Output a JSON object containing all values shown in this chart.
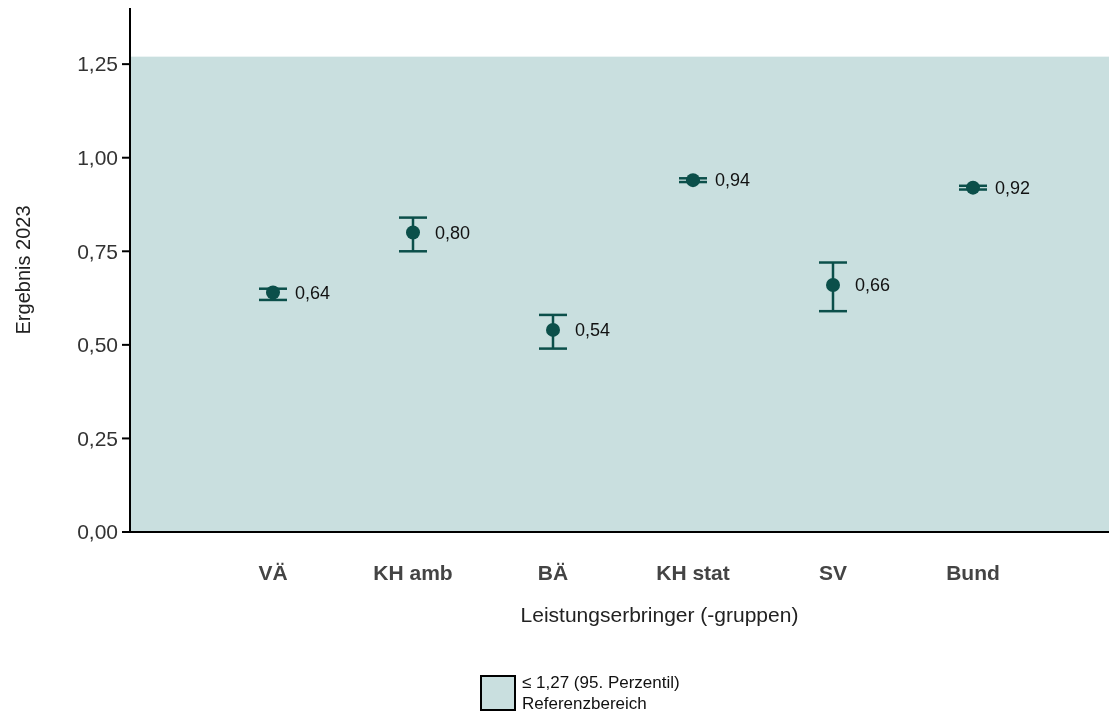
{
  "chart_data": {
    "type": "scatter",
    "xlabel": "Leistungserbringer (-gruppen)",
    "ylabel": "Ergebnis 2023",
    "categories": [
      "VÄ",
      "KH amb",
      "BÄ",
      "KH stat",
      "SV",
      "Bund"
    ],
    "series": [
      {
        "color": "#0b4f4a",
        "values": [
          0.64,
          0.8,
          0.54,
          0.94,
          0.66,
          0.92
        ],
        "errors": [
          [
            0.62,
            0.65
          ],
          [
            0.75,
            0.84
          ],
          [
            0.49,
            0.58
          ],
          [
            0.935,
            0.945
          ],
          [
            0.59,
            0.72
          ],
          [
            0.915,
            0.925
          ]
        ],
        "value_labels": [
          "0,64",
          "0,80",
          "0,54",
          "0,94",
          "0,66",
          "0,92"
        ]
      }
    ],
    "ylim": [
      0,
      1.4
    ],
    "yticks": [
      {
        "value": 0,
        "label": "0,00"
      },
      {
        "value": 0.25,
        "label": "0,25"
      },
      {
        "value": 0.5,
        "label": "0,50"
      },
      {
        "value": 0.75,
        "label": "0,75"
      },
      {
        "value": 1,
        "label": "1,00"
      },
      {
        "value": 1.25,
        "label": "1,25"
      }
    ],
    "bands": [
      {
        "axis": "y",
        "from": 0,
        "to": 1.27,
        "label": "≤ 1,27 (95. Perzentil)\nReferenzbereich",
        "color": "#c9dfdf"
      }
    ],
    "marker": "circle",
    "legend": "bottom",
    "grid": false
  }
}
